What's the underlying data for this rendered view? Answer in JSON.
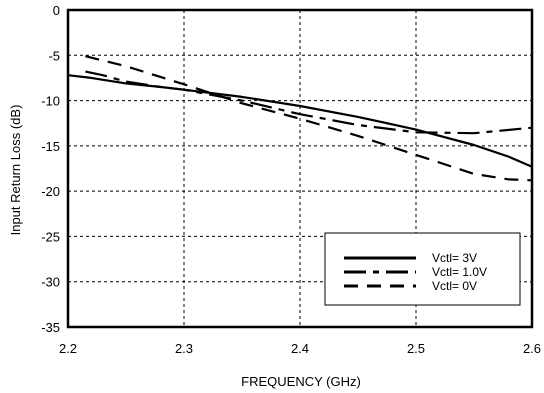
{
  "chart_data": {
    "type": "line",
    "title": "",
    "xlabel": "FREQUENCY (GHz)",
    "ylabel": "Input Return Loss (dB)",
    "xlim": [
      2.2,
      2.6
    ],
    "ylim": [
      -35,
      0
    ],
    "xticks": [
      "2.2",
      "2.3",
      "2.4",
      "2.5",
      "2.6"
    ],
    "yticks": [
      "0",
      "-5",
      "-10",
      "-15",
      "-20",
      "-25",
      "-30",
      "-35"
    ],
    "grid": true,
    "legend_position": "bottom-right",
    "series": [
      {
        "name": "Vctl= 3V",
        "dash": "solid",
        "x": [
          2.2,
          2.22,
          2.25,
          2.28,
          2.3,
          2.35,
          2.4,
          2.45,
          2.5,
          2.55,
          2.58,
          2.6
        ],
        "y": [
          -7.2,
          -7.5,
          -8.1,
          -8.5,
          -8.8,
          -9.6,
          -10.6,
          -11.8,
          -13.2,
          -14.9,
          -16.2,
          -17.3
        ]
      },
      {
        "name": "Vctl= 1.0V",
        "dash": "short",
        "x": [
          2.215,
          2.23,
          2.25,
          2.28,
          2.3,
          2.35,
          2.4,
          2.45,
          2.5,
          2.55,
          2.6
        ],
        "y": [
          -6.8,
          -7.2,
          -7.9,
          -8.5,
          -8.8,
          -10.0,
          -11.5,
          -12.7,
          -13.5,
          -13.6,
          -13.0
        ]
      },
      {
        "name": "Vctl= 0V",
        "dash": "long",
        "x": [
          2.215,
          2.25,
          2.3,
          2.35,
          2.4,
          2.45,
          2.5,
          2.55,
          2.58,
          2.6
        ],
        "y": [
          -5.1,
          -6.2,
          -8.2,
          -10.3,
          -12.0,
          -13.9,
          -16.0,
          -18.1,
          -18.7,
          -18.8
        ]
      }
    ]
  }
}
